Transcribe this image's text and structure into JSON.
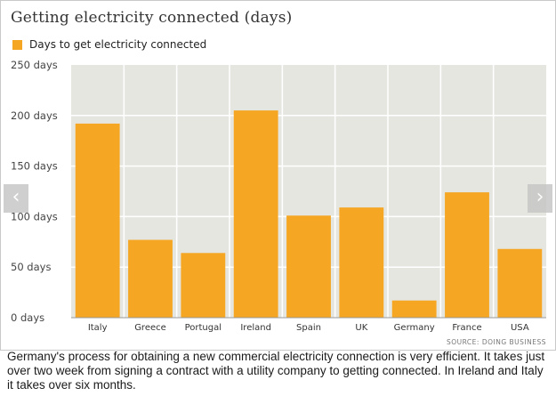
{
  "chart_data": {
    "type": "bar",
    "title": "Getting electricity connected (days)",
    "legend": "Days to get electricity connected",
    "categories": [
      "Italy",
      "Greece",
      "Portugal",
      "Ireland",
      "Spain",
      "UK",
      "Germany",
      "France",
      "USA"
    ],
    "values": [
      192,
      77,
      64,
      205,
      101,
      109,
      17,
      124,
      68
    ],
    "ylim": [
      0,
      250
    ],
    "yticks": [
      0,
      50,
      100,
      150,
      200,
      250
    ],
    "ytick_suffix": " days",
    "source": "SOURCE: DOING BUSINESS",
    "grid": true,
    "legend_position": "top-left"
  },
  "colors": {
    "bar": "#f5a623",
    "plot_bg": "#e6e6e1",
    "grid": "#ffffff",
    "axis_text": "#444444"
  },
  "caption": "Germany's process for obtaining a new commercial electricity connection is very efficient. It takes just over two week from signing a contract with a utility company to getting connected. In Ireland and Italy it takes over six months.",
  "nav": {
    "prev_icon": "chevron-left-icon",
    "next_icon": "chevron-right-icon"
  }
}
